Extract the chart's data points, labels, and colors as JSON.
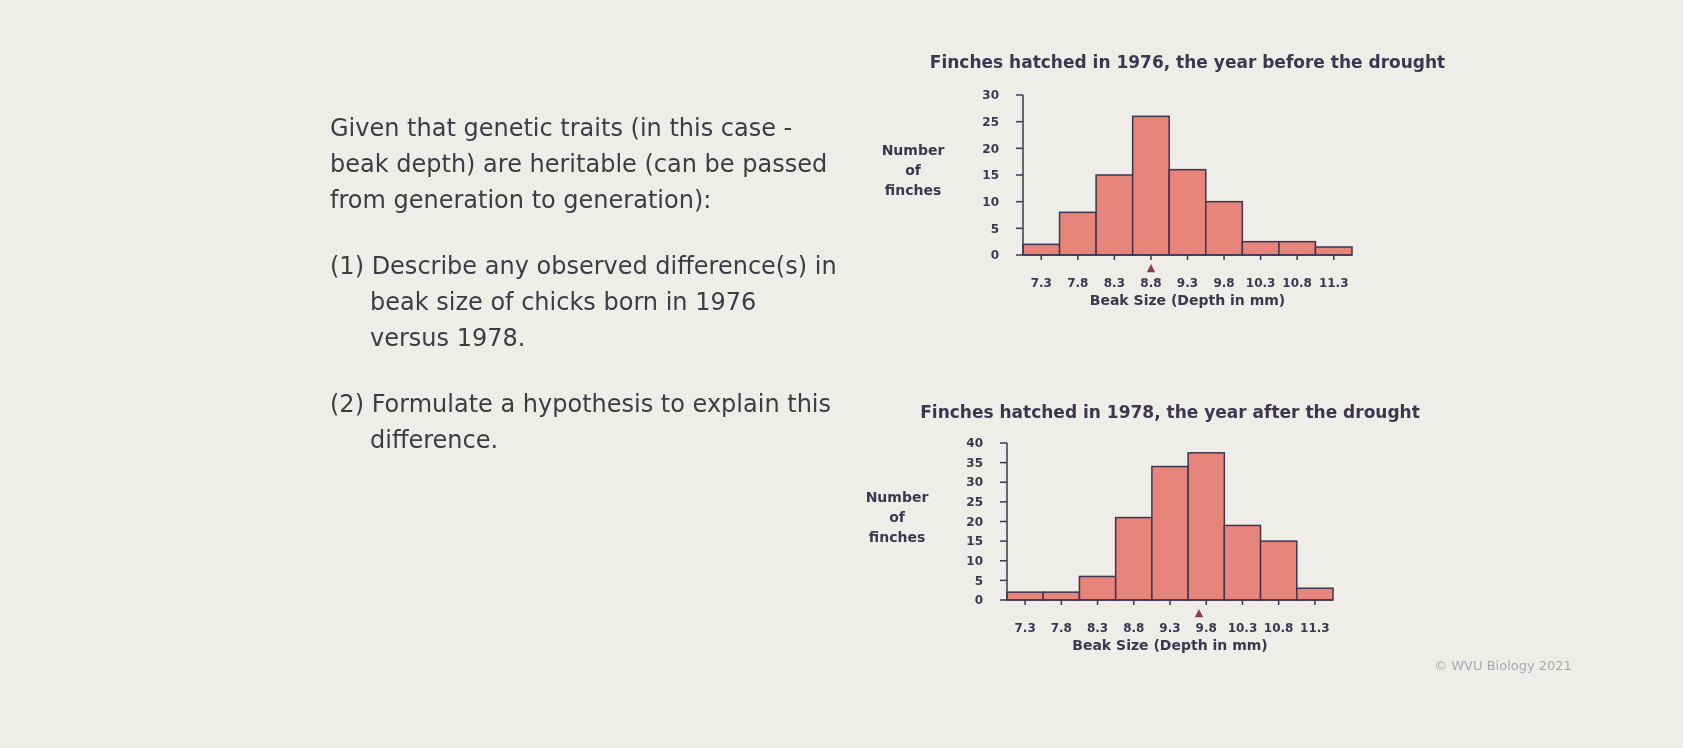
{
  "chart_data": [
    {
      "type": "other",
      "annotations": [
        "Given that genetic traits (in this case - beak depth) are heritable (can be passed from generation to generation):",
        "(1) Describe any observed difference(s) in beak size of chicks born in 1976 versus 1978.",
        "(2) Formulate a hypothesis to explain this difference."
      ]
    },
    {
      "type": "histogram",
      "title": "Finches hatched in 1976, the year before the drought",
      "xlabel": "Beak Size (Depth in mm)",
      "ylabel": "Number of finches",
      "color": "#e8857a",
      "bins": [
        7.05,
        7.55,
        8.05,
        8.55,
        9.05,
        9.55,
        10.05,
        10.55,
        11.05,
        11.55
      ],
      "values": [
        2,
        8,
        15,
        26,
        16,
        10,
        2.5,
        2.5,
        1.5
      ],
      "xlim": [
        7.05,
        11.55
      ],
      "xticks": [
        7.3,
        7.8,
        8.3,
        8.8,
        9.3,
        9.8,
        10.3,
        10.8,
        11.3
      ],
      "ylim": [
        0,
        30
      ],
      "yticks": [
        0,
        5,
        10,
        15,
        20,
        25,
        30
      ],
      "annotations": [
        {
          "text": "▲",
          "x": 8.8,
          "y": 0
        }
      ]
    },
    {
      "type": "histogram",
      "title": "Finches hatched in 1978, the year after the drought",
      "xlabel": "Beak Size (Depth in mm)",
      "ylabel": "Number of finches",
      "color": "#e8857a",
      "bins": [
        7.05,
        7.55,
        8.05,
        8.55,
        9.05,
        9.55,
        10.05,
        10.55,
        11.05,
        11.55
      ],
      "values": [
        2,
        2,
        6,
        21,
        34,
        37.5,
        19,
        15,
        3
      ],
      "xlim": [
        7.05,
        11.55
      ],
      "xticks": [
        7.3,
        7.8,
        8.3,
        8.8,
        9.3,
        9.8,
        10.3,
        10.8,
        11.3
      ],
      "ylim": [
        0,
        40
      ],
      "yticks": [
        0,
        5,
        10,
        15,
        20,
        25,
        30,
        35,
        40
      ],
      "annotations": [
        {
          "text": "▲",
          "x": 9.7,
          "y": 0
        },
        "© WVU Biology 2021"
      ]
    }
  ]
}
